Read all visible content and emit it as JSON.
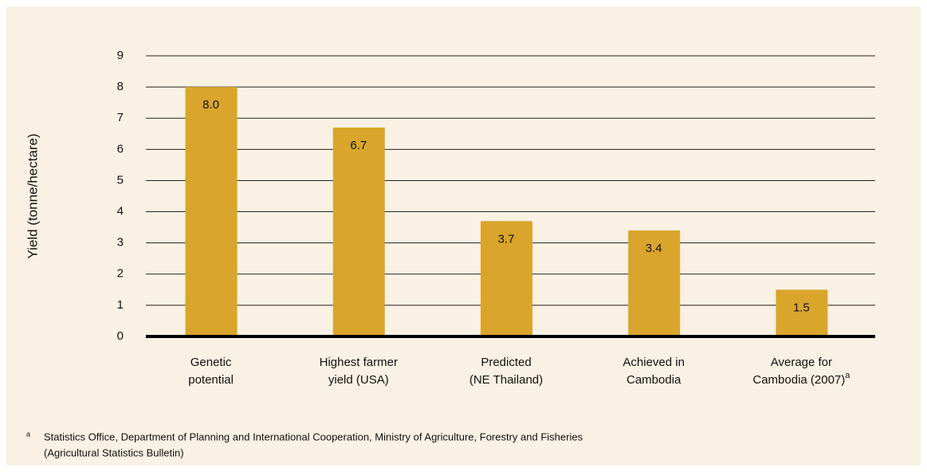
{
  "chart_data": {
    "type": "bar",
    "y_label": "Yield (tonne/hectare)",
    "categories": [
      [
        "Genetic",
        "potential"
      ],
      [
        "Highest farmer",
        "yield (USA)"
      ],
      [
        "Predicted",
        "(NE Thailand)"
      ],
      [
        "Achieved in",
        "Cambodia"
      ],
      [
        "Average for",
        "Cambodia (2007)"
      ]
    ],
    "category_notes": [
      null,
      null,
      null,
      null,
      "a"
    ],
    "values": [
      8,
      6.7,
      3.7,
      3.4,
      1.5
    ],
    "value_labels": [
      "8.0",
      "6.7",
      "3.7",
      "3.4",
      "1.5"
    ],
    "color": "#daa52b",
    "ylim": [
      0,
      9
    ],
    "yticks": [
      0,
      1,
      2,
      3,
      4,
      5,
      6,
      7,
      8,
      9
    ],
    "grid": true,
    "footnote": {
      "marker": "a",
      "lines": [
        "Statistics Office, Department of Planning and International Cooperation, Ministry of Agriculture, Forestry and Fisheries",
        "(Agricultural Statistics Bulletin)"
      ]
    }
  }
}
